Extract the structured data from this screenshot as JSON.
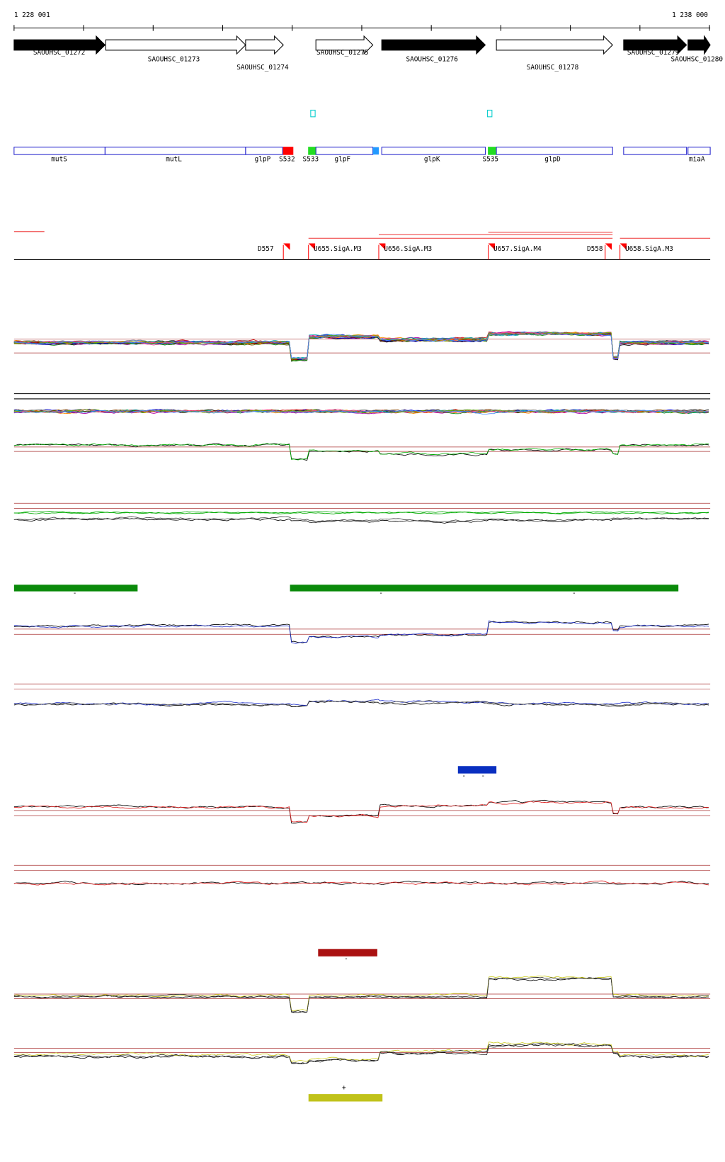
{
  "ruler": {
    "start": "1 228 001",
    "end": "1 238 000"
  },
  "genes": [
    "SAOUHSC_01272",
    "SAOUHSC_01273",
    "SAOUHSC_01274",
    "SAOUHSC_01275",
    "SAOUHSC_01276",
    "SAOUHSC_01278",
    "SAOUHSC_01279",
    "SAOUHSC_01280"
  ],
  "features": [
    "mutS",
    "mutL",
    "glpP",
    "S532",
    "S533",
    "glpF",
    "glpK",
    "S535",
    "glpD",
    "miaA"
  ],
  "promoters": [
    "D557",
    "U655.SigA.M3",
    "U656.SigA.M3",
    "U657.SigA.M4",
    "D558",
    "U658.SigA.M3"
  ],
  "strand_marks": [
    "-",
    "-",
    "-",
    "-",
    "-",
    "-",
    "+"
  ]
}
